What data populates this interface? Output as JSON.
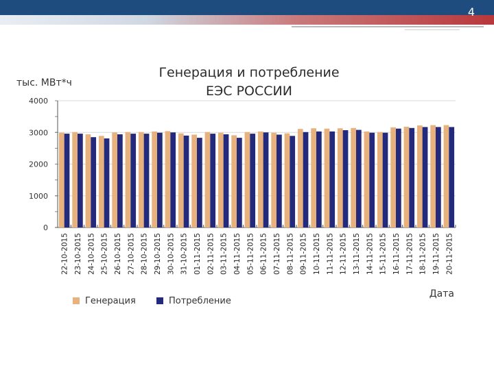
{
  "slide": {
    "number": "4"
  },
  "colors": {
    "generation": "#e8b27f",
    "consumption": "#232a7c",
    "header": "#1f4c7f",
    "accent": "#b8373b"
  },
  "chart_data": {
    "type": "bar",
    "title_line1": "Генерация и потребление",
    "title_line2": "ЕЭС РОССИИ",
    "ylabel": "тыс. МВт*ч",
    "xlabel": "Дата",
    "ylim": [
      0,
      4000
    ],
    "yticks": [
      "0",
      "1000",
      "2000",
      "3000",
      "4000"
    ],
    "legend_position": "bottom",
    "categories": [
      "22-10-2015",
      "23-10-2015",
      "24-10-2015",
      "25-10-2015",
      "26-10-2015",
      "27-10-2015",
      "28-10-2015",
      "29-10-2015",
      "30-10-2015",
      "31-10-2015",
      "01-11-2015",
      "02-11-2015",
      "03-11-2015",
      "04-11-2015",
      "05-11-2015",
      "06-11-2015",
      "07-11-2015",
      "08-11-2015",
      "09-11-2015",
      "10-11-2015",
      "11-11-2015",
      "12-11-2015",
      "13-11-2015",
      "14-11-2015",
      "15-11-2015",
      "16-11-2015",
      "17-11-2015",
      "18-11-2015",
      "19-11-2015",
      "20-11-2015"
    ],
    "series": [
      {
        "name": "Генерация",
        "values": [
          2990,
          3010,
          2940,
          2890,
          3000,
          3010,
          3010,
          3030,
          3040,
          2970,
          2930,
          3010,
          2990,
          2910,
          3010,
          3030,
          2990,
          2970,
          3110,
          3130,
          3120,
          3130,
          3140,
          3030,
          3010,
          3160,
          3180,
          3220,
          3230,
          3230
        ]
      },
      {
        "name": "Потребление",
        "values": [
          2960,
          2960,
          2850,
          2810,
          2940,
          2960,
          2960,
          2990,
          3000,
          2900,
          2830,
          2960,
          2940,
          2830,
          2960,
          3000,
          2930,
          2890,
          3010,
          3030,
          3030,
          3070,
          3080,
          2990,
          2990,
          3120,
          3140,
          3170,
          3170,
          3170
        ]
      }
    ]
  }
}
